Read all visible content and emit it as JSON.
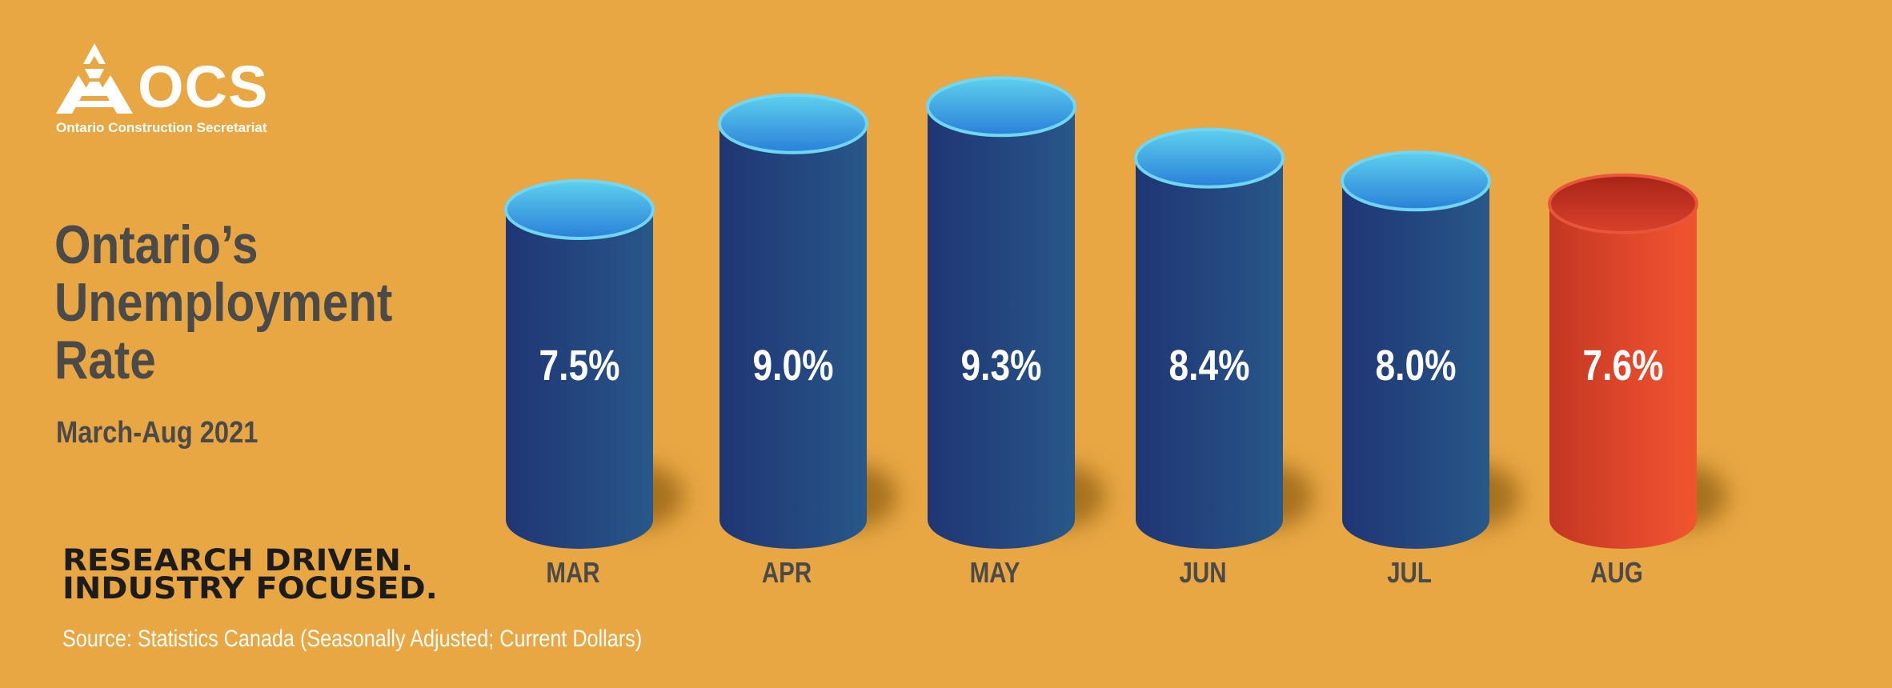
{
  "brand": {
    "name": "OCS",
    "tagline": "Ontario Construction Secretariat"
  },
  "title": "Ontario’s Unemployment Rate",
  "title_lines": [
    "Ontario’s",
    "Unemployment",
    "Rate"
  ],
  "subtitle": "March-Aug 2021",
  "slogan": {
    "line1": "RESEARCH DRIVEN.",
    "line2": "INDUSTRY FOCUSED."
  },
  "source": "Source: Statistics Canada (Seasonally Adjusted; Current Dollars)",
  "colors": {
    "background": "#E9A743",
    "bar_primary": "#24417A",
    "bar_highlight": "#D9432A",
    "text_dark": "#4A4A4A"
  },
  "chart_data": {
    "type": "bar",
    "style": "3d-cylinder",
    "categories": [
      "MAR",
      "APR",
      "MAY",
      "JUN",
      "JUL",
      "AUG"
    ],
    "values": [
      7.5,
      9.0,
      9.3,
      8.4,
      8.0,
      7.6
    ],
    "value_labels": [
      "7.5%",
      "9.0%",
      "9.3%",
      "8.4%",
      "8.0%",
      "7.6%"
    ],
    "highlight_index": 5,
    "xlabel": "",
    "ylabel": "",
    "grid": false,
    "legend": "none"
  }
}
